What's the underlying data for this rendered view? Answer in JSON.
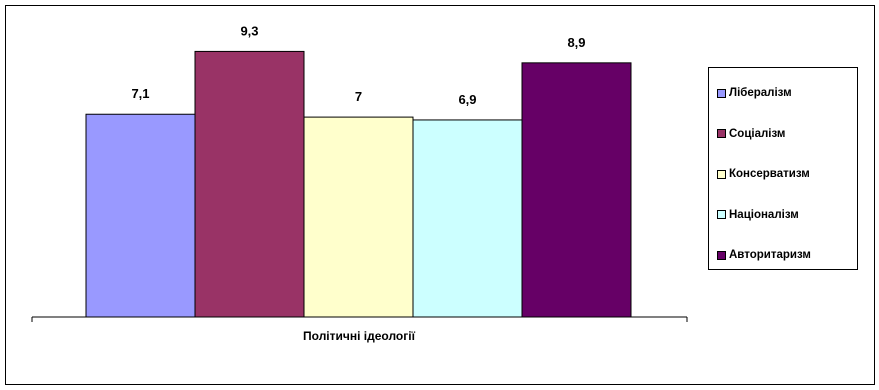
{
  "chart_data": {
    "type": "bar",
    "title": "",
    "xlabel": "Політичні ідеології",
    "ylabel": "",
    "ylim": [
      0,
      10.4
    ],
    "grid": false,
    "legend_position": "right",
    "series": [
      {
        "name": "Лібералізм",
        "value": 7.1,
        "label": "7,1",
        "color": "#9999FF"
      },
      {
        "name": "Соціалізм",
        "value": 9.3,
        "label": "9,3",
        "color": "#993366"
      },
      {
        "name": "Консерватизм",
        "value": 7.0,
        "label": "7",
        "color": "#FFFFCC"
      },
      {
        "name": "Націоналізм",
        "value": 6.9,
        "label": "6,9",
        "color": "#CCFFFF"
      },
      {
        "name": "Авторитаризм",
        "value": 8.9,
        "label": "8,9",
        "color": "#660066"
      }
    ]
  }
}
